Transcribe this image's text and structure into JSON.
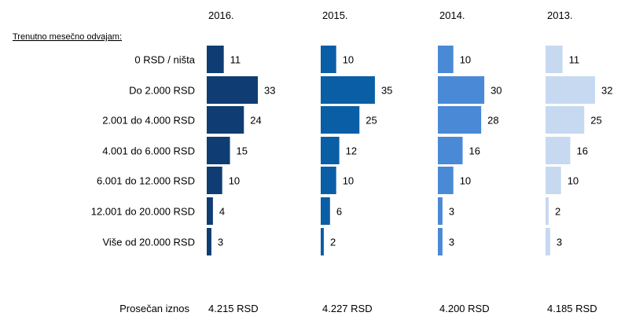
{
  "chart_data": {
    "type": "bar",
    "orientation": "horizontal",
    "section_label": "Trenutno mesečno odvajam:",
    "categories": [
      "0 RSD / ništa",
      "Do 2.000 RSD",
      "2.001 do 4.000 RSD",
      "4.001 do 6.000 RSD",
      "6.001 do 12.000 RSD",
      "12.001 do 20.000 RSD",
      "Više od 20.000 RSD"
    ],
    "series": [
      {
        "name": "2016.",
        "values": [
          11,
          33,
          24,
          15,
          10,
          4,
          3
        ],
        "color": "#0f3d73",
        "average": "4.215 RSD"
      },
      {
        "name": "2015.",
        "values": [
          10,
          35,
          25,
          12,
          10,
          6,
          2
        ],
        "color": "#0a5ea6",
        "average": "4.227 RSD"
      },
      {
        "name": "2014.",
        "values": [
          10,
          30,
          28,
          16,
          10,
          3,
          3
        ],
        "color": "#4a89d6",
        "average": "4.200 RSD"
      },
      {
        "name": "2013.",
        "values": [
          11,
          32,
          25,
          16,
          10,
          2,
          3
        ],
        "color": "#c6d9f1",
        "average": "4.185 RSD"
      }
    ],
    "footer_label": "Prosečan iznos",
    "xlim": [
      0,
      35
    ],
    "grid": false,
    "legend": "none"
  }
}
